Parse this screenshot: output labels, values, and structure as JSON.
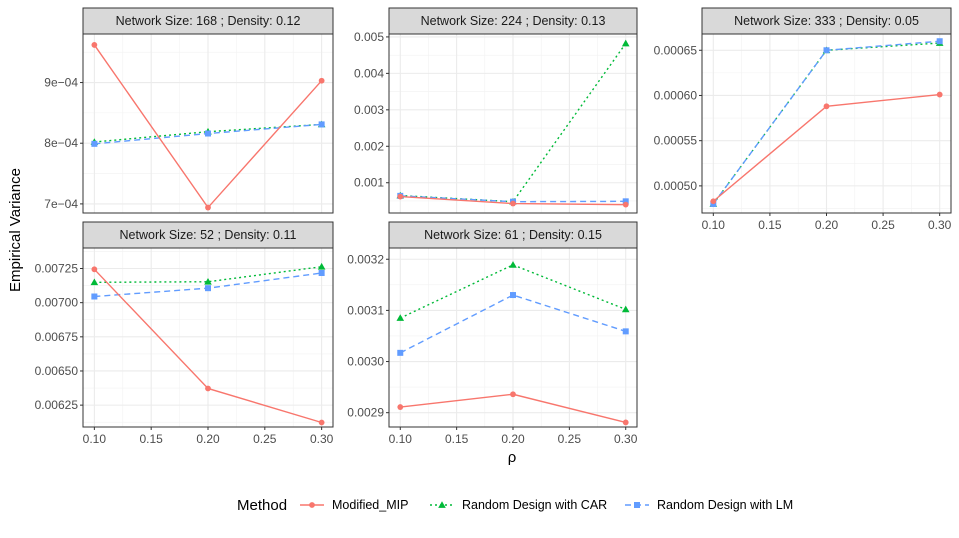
{
  "chart_data": {
    "type": "line",
    "ylabel": "Empirical Variance",
    "xlabel": "ρ",
    "x": [
      0.1,
      0.2,
      0.3
    ],
    "x_ticks": [
      "0.10",
      "0.15",
      "0.20",
      "0.25",
      "0.30"
    ],
    "legend": {
      "title": "Method",
      "position": "bottom",
      "entries": [
        {
          "name": "Modified_MIP",
          "color": "#F8766D",
          "shape": "circle",
          "dash": "solid"
        },
        {
          "name": "Random Design with CAR",
          "color": "#00BA38",
          "shape": "triangle",
          "dash": "dotted"
        },
        {
          "name": "Random Design with LM",
          "color": "#619CFF",
          "shape": "square",
          "dash": "dashed"
        }
      ]
    },
    "panels": [
      {
        "title": "Network Size: 168 ; Density: 0.12",
        "ylim": [
          0.000685,
          0.00098
        ],
        "y_ticks": [
          0.0007,
          0.0008,
          0.0009
        ],
        "y_tick_labels": [
          "7e−04",
          "8e−04",
          "9e−04"
        ],
        "series": [
          {
            "name": "Modified_MIP",
            "values": [
              0.000962,
              0.000694,
              0.000903
            ]
          },
          {
            "name": "Random Design with CAR",
            "values": [
              0.000802,
              0.000819,
              0.000831
            ]
          },
          {
            "name": "Random Design with LM",
            "values": [
              0.000799,
              0.000816,
              0.000831
            ]
          }
        ]
      },
      {
        "title": "Network Size: 224 ; Density: 0.13",
        "ylim": [
          0.00017,
          0.00508
        ],
        "y_ticks": [
          0.001,
          0.002,
          0.003,
          0.004,
          0.005
        ],
        "y_tick_labels": [
          "0.001",
          "0.002",
          "0.003",
          "0.004",
          "0.005"
        ],
        "series": [
          {
            "name": "Modified_MIP",
            "values": [
              0.00062,
              0.00043,
              0.0004
            ]
          },
          {
            "name": "Random Design with CAR",
            "values": [
              0.00065,
              0.00048,
              0.00482
            ]
          },
          {
            "name": "Random Design with LM",
            "values": [
              0.00064,
              0.00048,
              0.00049
            ]
          }
        ]
      },
      {
        "title": "Network Size: 333 ; Density: 0.05",
        "ylim": [
          0.00047,
          0.000668
        ],
        "y_ticks": [
          0.0005,
          0.00055,
          0.0006,
          0.00065
        ],
        "y_tick_labels": [
          "0.00050",
          "0.00055",
          "0.00060",
          "0.00065"
        ],
        "series": [
          {
            "name": "Modified_MIP",
            "values": [
              0.000483,
              0.000588,
              0.000601
            ]
          },
          {
            "name": "Random Design with CAR",
            "values": [
              0.00048,
              0.00065,
              0.000658
            ]
          },
          {
            "name": "Random Design with LM",
            "values": [
              0.00048,
              0.00065,
              0.00066
            ]
          }
        ]
      },
      {
        "title": "Network Size: 52 ; Density: 0.11",
        "ylim": [
          0.00609,
          0.0074
        ],
        "y_ticks": [
          0.00625,
          0.0065,
          0.00675,
          0.007,
          0.00725
        ],
        "y_tick_labels": [
          "0.00625",
          "0.00650",
          "0.00675",
          "0.00700",
          "0.00725"
        ],
        "series": [
          {
            "name": "Modified_MIP",
            "values": [
              0.007244,
              0.006372,
              0.006123
            ]
          },
          {
            "name": "Random Design with CAR",
            "values": [
              0.007149,
              0.007153,
              0.007263
            ]
          },
          {
            "name": "Random Design with LM",
            "values": [
              0.007045,
              0.007106,
              0.007217
            ]
          }
        ]
      },
      {
        "title": "Network Size: 61 ; Density: 0.15",
        "ylim": [
          0.002872,
          0.003222
        ],
        "y_ticks": [
          0.0029,
          0.003,
          0.0031,
          0.0032
        ],
        "y_tick_labels": [
          "0.0029",
          "0.0030",
          "0.0031",
          "0.0032"
        ],
        "series": [
          {
            "name": "Modified_MIP",
            "values": [
              0.002911,
              0.002936,
              0.002881
            ]
          },
          {
            "name": "Random Design with CAR",
            "values": [
              0.003085,
              0.003189,
              0.003102
            ]
          },
          {
            "name": "Random Design with LM",
            "values": [
              0.003017,
              0.00313,
              0.003059
            ]
          }
        ]
      }
    ]
  }
}
